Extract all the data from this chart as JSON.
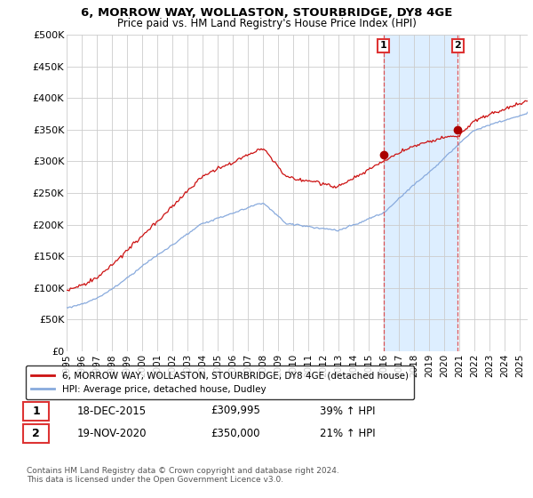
{
  "title": "6, MORROW WAY, WOLLASTON, STOURBRIDGE, DY8 4GE",
  "subtitle": "Price paid vs. HM Land Registry's House Price Index (HPI)",
  "ylabel_ticks": [
    "£0",
    "£50K",
    "£100K",
    "£150K",
    "£200K",
    "£250K",
    "£300K",
    "£350K",
    "£400K",
    "£450K",
    "£500K"
  ],
  "ytick_values": [
    0,
    50000,
    100000,
    150000,
    200000,
    250000,
    300000,
    350000,
    400000,
    450000,
    500000
  ],
  "ylim": [
    0,
    500000
  ],
  "xlim_start": 1995.5,
  "xlim_end": 2025.5,
  "xtick_years": [
    1995,
    1996,
    1997,
    1998,
    1999,
    2000,
    2001,
    2002,
    2003,
    2004,
    2005,
    2006,
    2007,
    2008,
    2009,
    2010,
    2011,
    2012,
    2013,
    2014,
    2015,
    2016,
    2017,
    2018,
    2019,
    2020,
    2021,
    2022,
    2023,
    2024,
    2025
  ],
  "hpi_color": "#88aadd",
  "price_color": "#cc1111",
  "vline_color": "#dd3333",
  "transaction1_year": 2015.96,
  "transaction1_price": 309995,
  "transaction2_year": 2020.88,
  "transaction2_price": 350000,
  "legend_label_red": "6, MORROW WAY, WOLLASTON, STOURBRIDGE, DY8 4GE (detached house)",
  "legend_label_blue": "HPI: Average price, detached house, Dudley",
  "annotation1_date": "18-DEC-2015",
  "annotation1_price": "£309,995",
  "annotation1_hpi": "39% ↑ HPI",
  "annotation2_date": "19-NOV-2020",
  "annotation2_price": "£350,000",
  "annotation2_hpi": "21% ↑ HPI",
  "copyright_text": "Contains HM Land Registry data © Crown copyright and database right 2024.\nThis data is licensed under the Open Government Licence v3.0.",
  "background_color": "#ffffff",
  "grid_color": "#cccccc",
  "span_color": "#ddeeff",
  "marker_dot_color": "#aa0000"
}
